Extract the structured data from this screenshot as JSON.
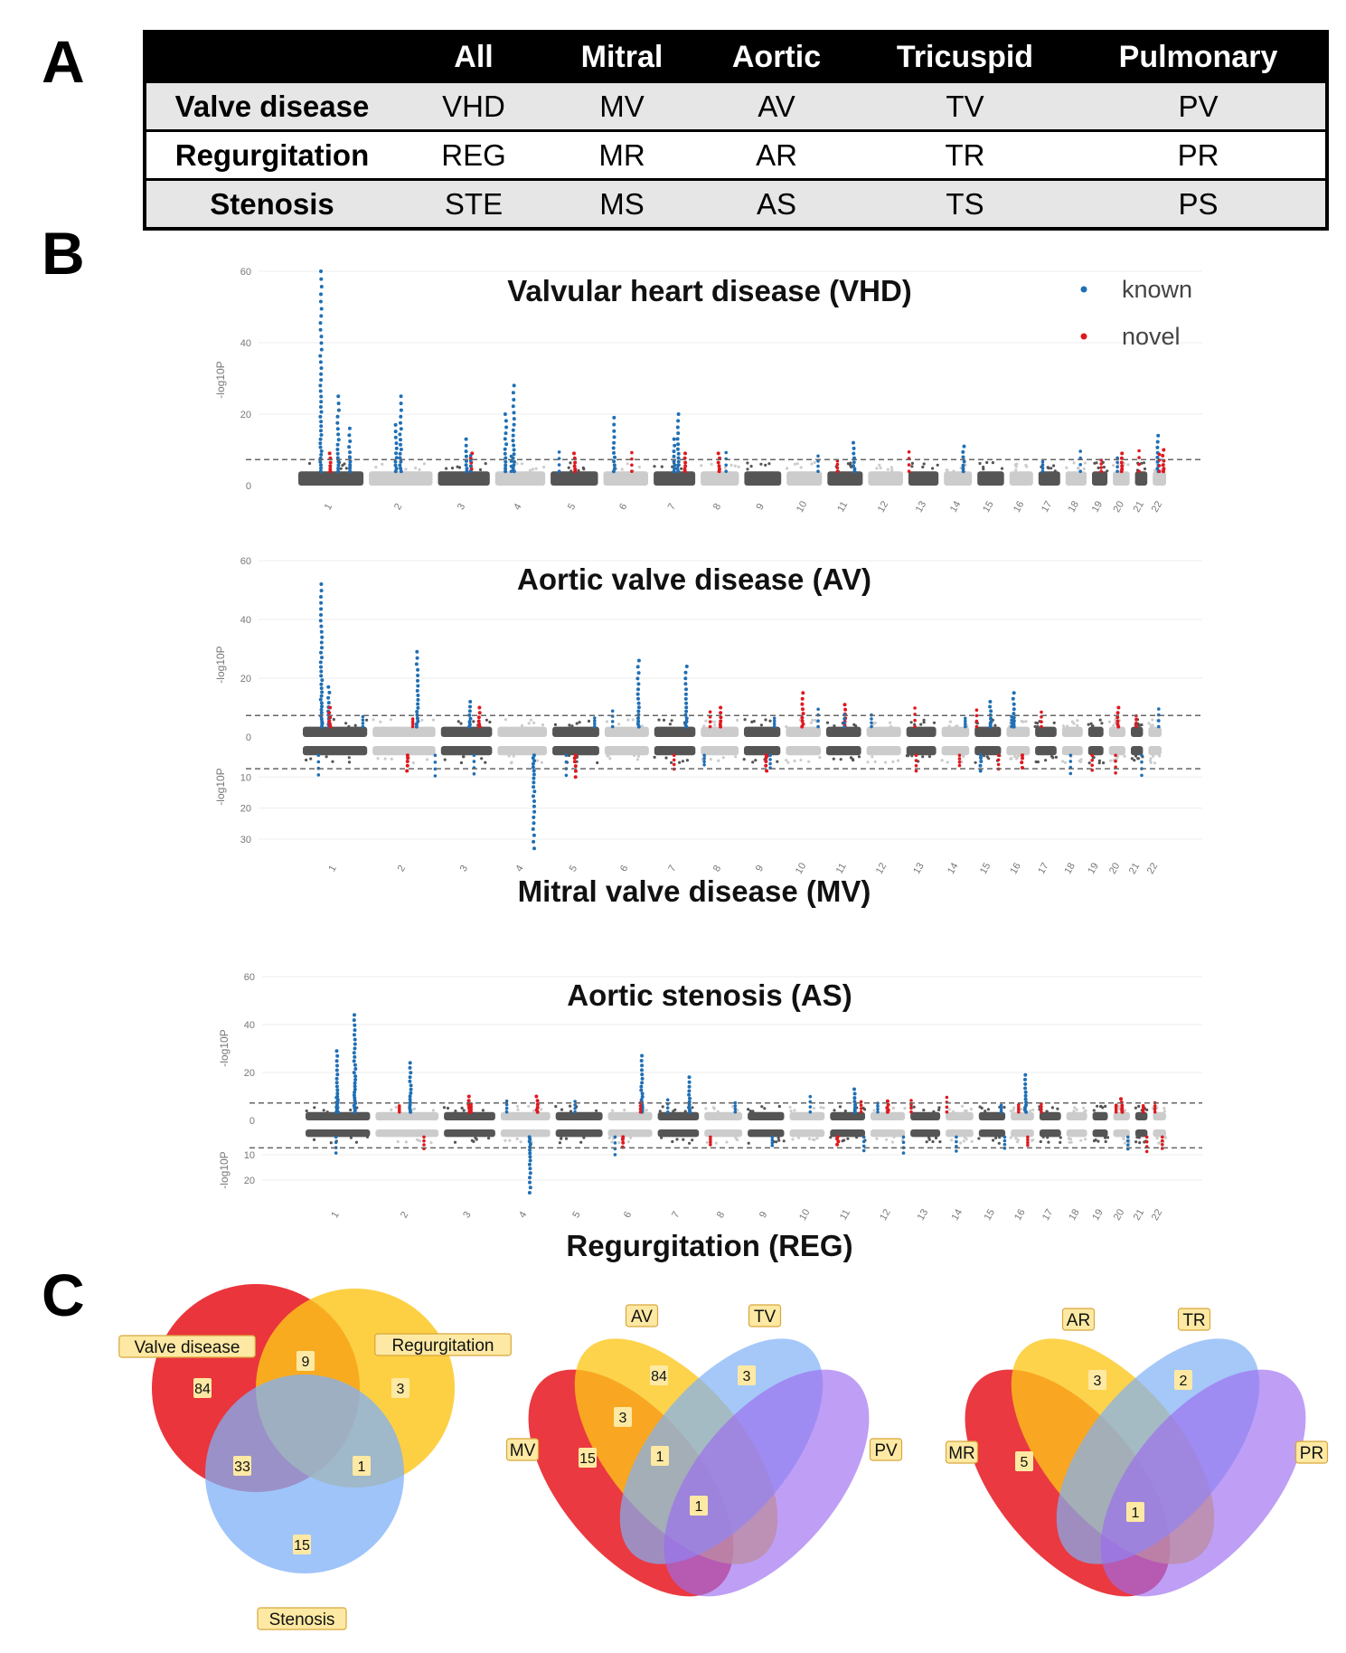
{
  "panels": {
    "a": "A",
    "b": "B",
    "c": "C"
  },
  "table": {
    "headers": [
      "",
      "All",
      "Mitral",
      "Aortic",
      "Tricuspid",
      "Pulmonary"
    ],
    "rows": [
      {
        "label": "Valve disease",
        "cells": [
          "VHD",
          "MV",
          "AV",
          "TV",
          "PV"
        ]
      },
      {
        "label": "Regurgitation",
        "cells": [
          "REG",
          "MR",
          "AR",
          "TR",
          "PR"
        ]
      },
      {
        "label": "Stenosis",
        "cells": [
          "STE",
          "MS",
          "AS",
          "TS",
          "PS"
        ]
      }
    ]
  },
  "colors": {
    "known": "#1f6fb5",
    "novel": "#e0181e",
    "chrom_dark": "#555555",
    "chrom_light": "#cccccc",
    "threshold": "#666666",
    "venn_red": "#e8242b",
    "venn_yellow": "#fcc61a",
    "venn_blue": "#7fb0f7",
    "venn_purple": "#9b6cf0",
    "label_fill": "#fde9a3",
    "label_stroke": "#d9a63c"
  },
  "chart_data": [
    {
      "type": "scatter",
      "subtype": "manhattan",
      "title": "Valvular heart disease (VHD)",
      "ylabel": "-log10P",
      "ylim": [
        0,
        60
      ],
      "yticks": [
        0,
        20,
        40,
        60
      ],
      "threshold": 7.3,
      "chromosomes": [
        "1",
        "2",
        "3",
        "4",
        "5",
        "6",
        "7",
        "8",
        "9",
        "10",
        "11",
        "12",
        "13",
        "14",
        "15",
        "16",
        "17",
        "18",
        "19",
        "20",
        "21",
        "22"
      ],
      "legend": [
        "known",
        "novel"
      ],
      "known_peaks": [
        {
          "chr": "1",
          "y": 60
        },
        {
          "chr": "1",
          "y": 25
        },
        {
          "chr": "1",
          "y": 16
        },
        {
          "chr": "2",
          "y": 25
        },
        {
          "chr": "2",
          "y": 17
        },
        {
          "chr": "3",
          "y": 13
        },
        {
          "chr": "4",
          "y": 28
        },
        {
          "chr": "4",
          "y": 20
        },
        {
          "chr": "6",
          "y": 19
        },
        {
          "chr": "7",
          "y": 20
        },
        {
          "chr": "7",
          "y": 13
        },
        {
          "chr": "11",
          "y": 12
        },
        {
          "chr": "14",
          "y": 11
        },
        {
          "chr": "22",
          "y": 14
        }
      ],
      "novel_peaks": [
        {
          "chr": "1",
          "y": 9
        },
        {
          "chr": "3",
          "y": 9
        },
        {
          "chr": "5",
          "y": 9
        },
        {
          "chr": "7",
          "y": 9
        },
        {
          "chr": "8",
          "y": 9
        },
        {
          "chr": "20",
          "y": 9
        },
        {
          "chr": "22",
          "y": 10
        }
      ]
    },
    {
      "type": "scatter",
      "subtype": "miami",
      "title_top": "Aortic valve disease (AV)",
      "title_bottom": "Mitral valve disease (MV)",
      "ylabel": "-log10P",
      "ylim_top": [
        0,
        60
      ],
      "yticks_top": [
        0,
        20,
        40,
        60
      ],
      "ylim_bottom": [
        0,
        30
      ],
      "yticks_bottom": [
        0,
        10,
        20,
        30
      ],
      "threshold": 7.3,
      "chromosomes": [
        "1",
        "2",
        "3",
        "4",
        "5",
        "6",
        "7",
        "8",
        "9",
        "10",
        "11",
        "12",
        "13",
        "14",
        "15",
        "16",
        "17",
        "18",
        "19",
        "20",
        "21",
        "22"
      ],
      "known_peaks_top": [
        {
          "chr": "1",
          "y": 52
        },
        {
          "chr": "1",
          "y": 17
        },
        {
          "chr": "2",
          "y": 29
        },
        {
          "chr": "3",
          "y": 12
        },
        {
          "chr": "6",
          "y": 26
        },
        {
          "chr": "7",
          "y": 24
        },
        {
          "chr": "16",
          "y": 15
        },
        {
          "chr": "15",
          "y": 12
        }
      ],
      "known_peaks_bottom": [
        {
          "chr": "4",
          "y": 33
        },
        {
          "chr": "15",
          "y": 8
        }
      ],
      "novel_peaks_top": [
        {
          "chr": "1",
          "y": 10
        },
        {
          "chr": "3",
          "y": 10
        },
        {
          "chr": "8",
          "y": 10
        },
        {
          "chr": "10",
          "y": 15
        },
        {
          "chr": "11",
          "y": 11
        },
        {
          "chr": "20",
          "y": 10
        }
      ],
      "novel_peaks_bottom": [
        {
          "chr": "2",
          "y": 8
        },
        {
          "chr": "5",
          "y": 10
        },
        {
          "chr": "9",
          "y": 8
        },
        {
          "chr": "16",
          "y": 7
        }
      ]
    },
    {
      "type": "scatter",
      "subtype": "miami",
      "title_top": "Aortic stenosis (AS)",
      "title_bottom": "Regurgitation (REG)",
      "ylabel": "-log10P",
      "ylim_top": [
        0,
        60
      ],
      "yticks_top": [
        0,
        20,
        40,
        60
      ],
      "ylim_bottom": [
        0,
        20
      ],
      "yticks_bottom": [
        0,
        10,
        20
      ],
      "threshold": 7.3,
      "chromosomes": [
        "1",
        "2",
        "3",
        "4",
        "5",
        "6",
        "7",
        "8",
        "9",
        "10",
        "11",
        "12",
        "13",
        "14",
        "15",
        "16",
        "17",
        "18",
        "19",
        "20",
        "21",
        "22"
      ],
      "known_peaks_top": [
        {
          "chr": "1",
          "y": 44
        },
        {
          "chr": "1",
          "y": 29
        },
        {
          "chr": "2",
          "y": 24
        },
        {
          "chr": "6",
          "y": 27
        },
        {
          "chr": "7",
          "y": 18
        },
        {
          "chr": "16",
          "y": 19
        },
        {
          "chr": "11",
          "y": 13
        }
      ],
      "known_peaks_bottom": [
        {
          "chr": "4",
          "y": 25
        }
      ],
      "novel_peaks_top": [
        {
          "chr": "3",
          "y": 10
        },
        {
          "chr": "4",
          "y": 10
        },
        {
          "chr": "12",
          "y": 8
        },
        {
          "chr": "20",
          "y": 9
        }
      ],
      "novel_peaks_bottom": [
        {
          "chr": "6",
          "y": 7
        },
        {
          "chr": "11",
          "y": 6
        }
      ]
    },
    {
      "type": "venn",
      "sets": [
        "Valve disease",
        "Regurgitation",
        "Stenosis"
      ],
      "regions": {
        "Valve disease only": 84,
        "Valve disease & Regurgitation": 9,
        "Regurgitation only": 3,
        "Valve disease & Stenosis": 33,
        "Regurgitation & Stenosis": 1,
        "Stenosis only": 15
      }
    },
    {
      "type": "venn",
      "sets": [
        "MV",
        "AV",
        "TV",
        "PV"
      ],
      "regions": {
        "AV only": 84,
        "TV only": 3,
        "MV & AV": 3,
        "MV only": 15,
        "MV & AV & TV": 1,
        "MV & AV & TV & PV": 1
      }
    },
    {
      "type": "venn",
      "sets": [
        "MR",
        "AR",
        "TR",
        "PR"
      ],
      "regions": {
        "AR only": 3,
        "TR only": 2,
        "MR only": 5,
        "MR & AR & TR & PR": 1
      }
    }
  ]
}
